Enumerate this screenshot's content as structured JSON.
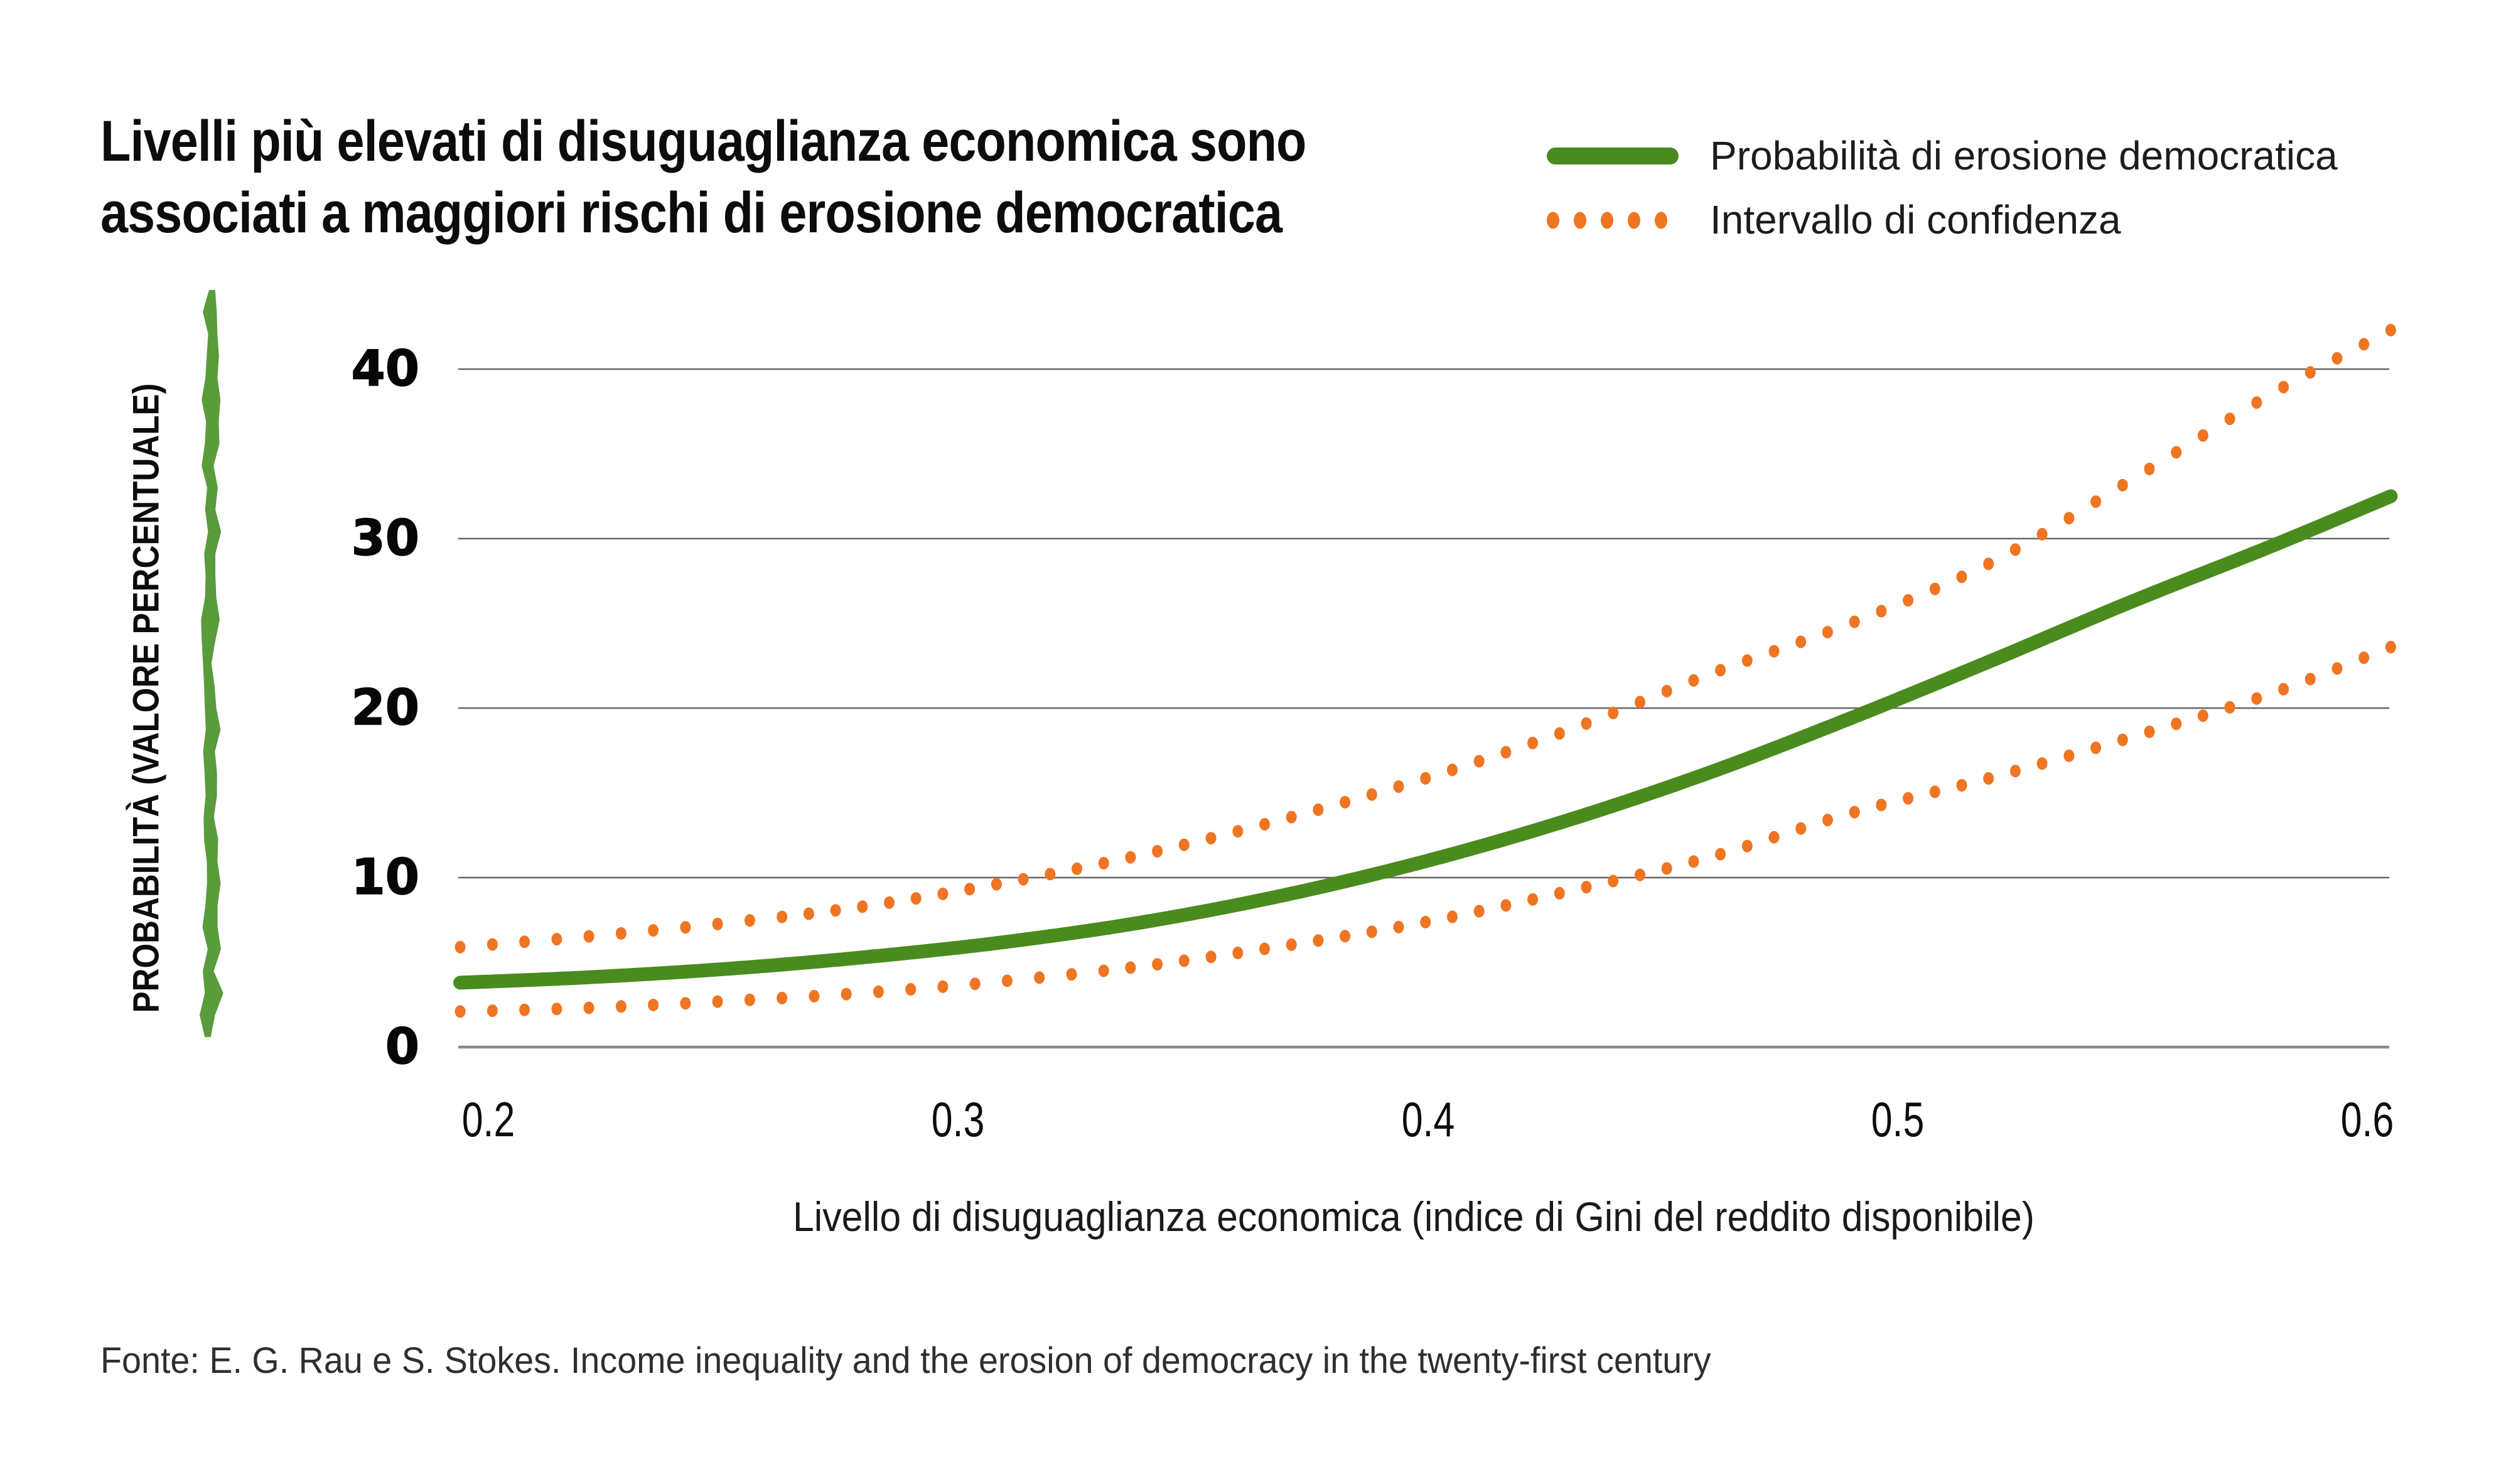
{
  "title": {
    "line1": "Livelli più elevati di disuguaglianza economica sono",
    "line2": "associati a maggiori rischi di erosione democratica"
  },
  "legend": [
    {
      "label": "Probabilità di erosione democratica",
      "swatch": "solid-line"
    },
    {
      "label": "Intervallo di confidenza",
      "swatch": "dotted-line"
    }
  ],
  "colors": {
    "line_green": "#4a8b1e",
    "brush_green": "#5a9b3c",
    "orange": "#ef7522",
    "gridline": "#666666",
    "baseline": "#8a8a8a",
    "text": "#111111"
  },
  "chart_data": {
    "type": "line",
    "title": "Livelli più elevati di disuguaglianza economica sono associati a maggiori rischi di erosione democratica",
    "xlabel": "Livello di disuguaglianza economica (indice di Gini del reddito disponibile)",
    "ylabel": "PROBABILITÀ (VALORE PERCENTUALE)",
    "xlim": [
      0.193,
      0.606
    ],
    "ylim": [
      0,
      44
    ],
    "grid": "horizontal",
    "legend_position": "top-right",
    "x_ticks": [
      0.2,
      0.3,
      0.4,
      0.5,
      0.6
    ],
    "x_tick_labels": [
      "0.2",
      "0.3",
      "0.4",
      "0.5",
      "0.6"
    ],
    "y_ticks": [
      0,
      10,
      20,
      30,
      40
    ],
    "y_tick_labels": [
      "0",
      "10",
      "20",
      "30",
      "40"
    ],
    "x": [
      0.194,
      0.22,
      0.25,
      0.28,
      0.31,
      0.34,
      0.37,
      0.4,
      0.43,
      0.46,
      0.49,
      0.52,
      0.55,
      0.58,
      0.605
    ],
    "series": [
      {
        "name": "Probabilità di erosione democratica",
        "style": "solid",
        "color": "#4a8b1e",
        "values": [
          3.8,
          4.1,
          4.6,
          5.3,
          6.2,
          7.4,
          9.0,
          11.0,
          13.4,
          16.2,
          19.4,
          22.8,
          26.3,
          29.6,
          32.5
        ]
      },
      {
        "name": "Intervallo di confidenza (limite superiore)",
        "style": "dotted",
        "color": "#ef7522",
        "values": [
          5.9,
          6.5,
          7.3,
          8.3,
          9.7,
          11.4,
          13.5,
          15.9,
          18.7,
          22.0,
          25.0,
          28.6,
          33.5,
          38.6,
          42.3
        ]
      },
      {
        "name": "Intervallo di confidenza (limite inferiore)",
        "style": "dotted",
        "color": "#ef7522",
        "values": [
          2.1,
          2.3,
          2.7,
          3.2,
          3.9,
          4.8,
          6.0,
          7.4,
          9.2,
          11.2,
          13.8,
          15.9,
          18.3,
          20.9,
          23.6
        ]
      }
    ]
  },
  "source": "Fonte: E. G. Rau e S. Stokes. Income inequality and the erosion of democracy in the twenty-first century"
}
